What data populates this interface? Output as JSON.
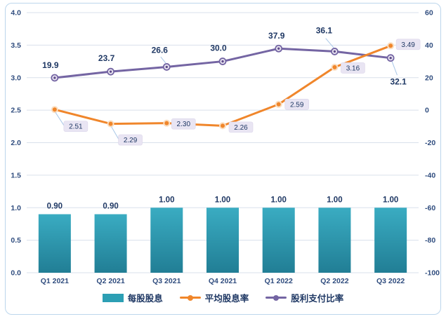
{
  "chart_data": {
    "type": "combo",
    "title": "",
    "categories": [
      "Q1 2021",
      "Q2 2021",
      "Q3 2021",
      "Q4 2021",
      "Q1 2022",
      "Q2 2022",
      "Q3 2022"
    ],
    "series": [
      {
        "name": "每股股息",
        "type": "bar",
        "axis": "left",
        "values": [
          0.9,
          0.9,
          1.0,
          1.0,
          1.0,
          1.0,
          1.0
        ],
        "labels": [
          "0.90",
          "0.90",
          "1.00",
          "1.00",
          "1.00",
          "1.00",
          "1.00"
        ],
        "color": "#2C9FB4",
        "color_top": "#3AACC2",
        "color_bottom": "#217E95"
      },
      {
        "name": "平均股息率",
        "type": "line",
        "axis": "left",
        "values": [
          2.51,
          2.29,
          2.3,
          2.26,
          2.59,
          3.16,
          3.49
        ],
        "labels": [
          "2.51",
          "2.29",
          "2.30",
          "2.26",
          "2.59",
          "3.16",
          "3.49"
        ],
        "color": "#F0862B",
        "marker_ring": "#FADDBF"
      },
      {
        "name": "股利支付比率",
        "type": "line",
        "axis": "right",
        "values": [
          19.9,
          23.7,
          26.6,
          30.0,
          37.9,
          36.1,
          32.1
        ],
        "labels": [
          "19.9",
          "23.7",
          "26.6",
          "30.0",
          "37.9",
          "36.1",
          "32.1"
        ],
        "color": "#7465A3",
        "marker_center": "#E9E6F1",
        "marker_core": "#5F4B8B"
      }
    ],
    "left_axis": {
      "min": 0,
      "max": 4,
      "ticks": [
        "4.0",
        "3.5",
        "3.0",
        "2.5",
        "2.0",
        "1.5",
        "1.0",
        "0.5",
        "0.0"
      ]
    },
    "right_axis": {
      "min": -100,
      "max": 60,
      "ticks": [
        "60",
        "40",
        "20",
        "0",
        "-20",
        "-40",
        "-60",
        "-80",
        "-100"
      ]
    },
    "grid": true,
    "legend_position": "bottom"
  },
  "colors": {
    "axis_text": "#2F4C7E",
    "data_label": "#1F3864",
    "grid": "#D9E0EB",
    "leader": "#A9C7E7",
    "label_box_bg": "#E9E5F3",
    "label_box_border": "#DCD6EA",
    "card_border": "#BCD6EC",
    "background": "#FFFFFF"
  }
}
